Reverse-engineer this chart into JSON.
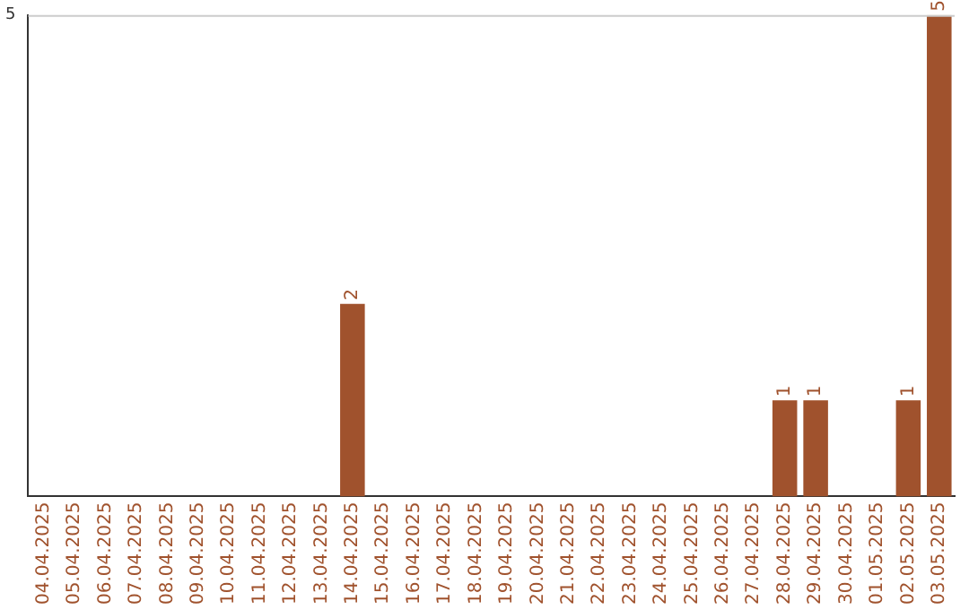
{
  "chart_data": {
    "type": "bar",
    "categories": [
      "04.04.2025",
      "05.04.2025",
      "06.04.2025",
      "07.04.2025",
      "08.04.2025",
      "09.04.2025",
      "10.04.2025",
      "11.04.2025",
      "12.04.2025",
      "13.04.2025",
      "14.04.2025",
      "15.04.2025",
      "16.04.2025",
      "17.04.2025",
      "18.04.2025",
      "19.04.2025",
      "20.04.2025",
      "21.04.2025",
      "22.04.2025",
      "23.04.2025",
      "24.04.2025",
      "25.04.2025",
      "26.04.2025",
      "27.04.2025",
      "28.04.2025",
      "29.04.2025",
      "30.04.2025",
      "01.05.2025",
      "02.05.2025",
      "03.05.2025"
    ],
    "values": [
      0,
      0,
      0,
      0,
      0,
      0,
      0,
      0,
      0,
      0,
      2,
      0,
      0,
      0,
      0,
      0,
      0,
      0,
      0,
      0,
      0,
      0,
      0,
      0,
      1,
      1,
      0,
      0,
      1,
      5
    ],
    "value_labels": [
      null,
      null,
      null,
      null,
      null,
      null,
      null,
      null,
      null,
      null,
      "2",
      null,
      null,
      null,
      null,
      null,
      null,
      null,
      null,
      null,
      null,
      null,
      null,
      null,
      "1",
      "1",
      null,
      null,
      "1",
      "5"
    ],
    "color": "#a0522d",
    "ylim": [
      0,
      5
    ],
    "yticks": [
      5
    ],
    "legend": false
  }
}
